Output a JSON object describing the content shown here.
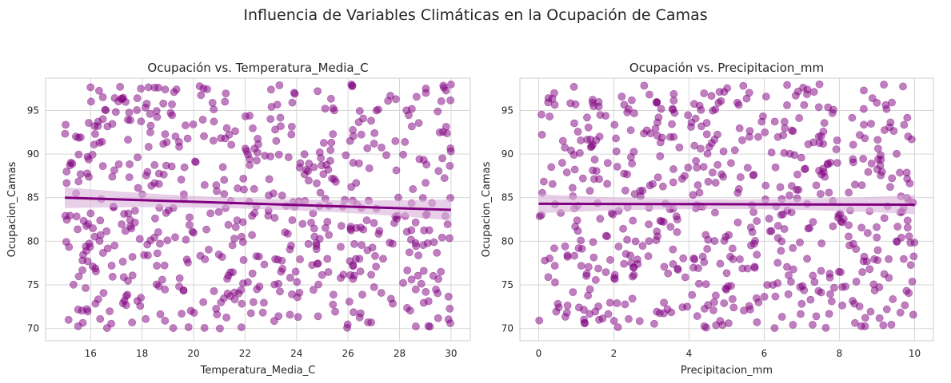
{
  "figure": {
    "suptitle": "Influencia de Variables Climáticas en la Ocupación de Camas"
  },
  "colors": {
    "point": "#800080",
    "line": "#800080",
    "band": "#d8b0d8",
    "grid": "#d6d6d6",
    "axes_edge": "#cccccc"
  },
  "chart_data": [
    {
      "type": "scatter",
      "title": "Ocupación vs. Temperatura_Media_C",
      "xlabel": "Temperatura_Media_C",
      "ylabel": "Ocupacion_Camas",
      "xlim": [
        14.25,
        30.75
      ],
      "ylim": [
        68.6,
        98.7
      ],
      "xticks": [
        16,
        18,
        20,
        22,
        24,
        26,
        28,
        30
      ],
      "yticks": [
        70,
        75,
        80,
        85,
        90,
        95
      ],
      "grid": true,
      "regression": {
        "x": [
          15,
          30
        ],
        "y": [
          85.0,
          83.6
        ],
        "ci_half_width_ends": 1.2,
        "ci_half_width_mid": 0.6
      },
      "x_range": [
        15,
        30
      ],
      "y_range": [
        70,
        98
      ],
      "n_points": 600,
      "seed": 1234
    },
    {
      "type": "scatter",
      "title": "Ocupación vs. Precipitacion_mm",
      "xlabel": "Precipitacion_mm",
      "ylabel": "Ocupacion_Camas",
      "xlim": [
        -0.5,
        10.5
      ],
      "ylim": [
        68.6,
        98.7
      ],
      "xticks": [
        0,
        2,
        4,
        6,
        8,
        10
      ],
      "yticks": [
        70,
        75,
        80,
        85,
        90,
        95
      ],
      "grid": true,
      "regression": {
        "x": [
          0,
          10
        ],
        "y": [
          84.3,
          84.2
        ],
        "ci_half_width_ends": 1.1,
        "ci_half_width_mid": 0.55
      },
      "x_range": [
        0,
        10
      ],
      "y_range": [
        70,
        98
      ],
      "n_points": 600,
      "seed": 5678
    }
  ]
}
